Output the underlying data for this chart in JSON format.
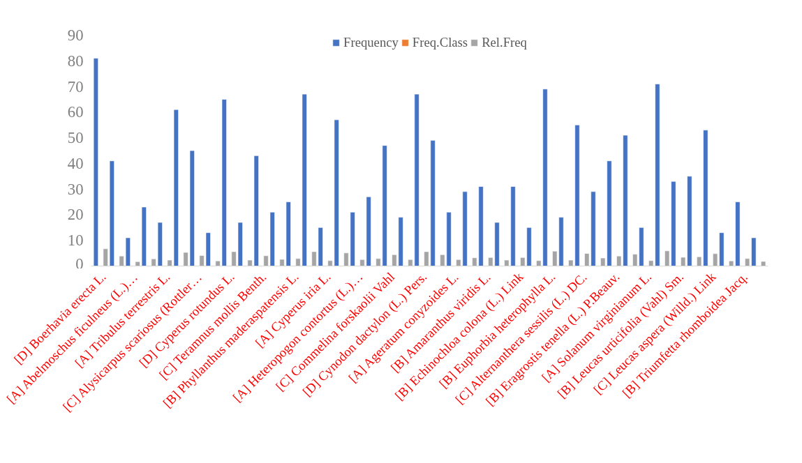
{
  "chart_data": {
    "type": "bar",
    "categories": [
      "[D] Boerhavia erecta L.",
      null,
      "[A] Abelmoschus ficulneus (L.)…",
      null,
      "[A] Tribulus terrestris L.",
      null,
      "[C] Alysicarpus scariosus (Rottler…",
      null,
      "[D] Cyperus rotundus L.",
      null,
      "[C] Teramnus mollis Benth.",
      null,
      "[B] Phyllanthus maderaspatensis L.",
      null,
      "[A] Cyperus iria L.",
      null,
      "[A] Heteropogon contortus (L.)…",
      null,
      "[C] Commelina forskaolii Vahl",
      null,
      "[D] Cynodon dactylon (L.) Pers.",
      null,
      "[A] Ageratum conyzoides L.",
      null,
      "[B] Amaranthus viridis L.",
      null,
      "[B] Echinochloa colona (L.) Link",
      null,
      "[B] Euphorbia heterophylla L.",
      null,
      "[C] Alternanthera sessilis (L.) DC.",
      null,
      "[B] Eragrostis tenella (L.) P.Beauv.",
      null,
      "[A] Solanum virginianum L.",
      null,
      "[B] Leucas urticifolia (Vahl) Sm.",
      null,
      "[C] Leucas aspera (Willd.) Link",
      null,
      "[B] Triumfetta rhomboidea Jacq.",
      null
    ],
    "series": [
      {
        "name": "Frequency",
        "color": "#4472c4",
        "values": [
          81,
          41,
          11,
          23,
          17,
          61,
          45,
          13,
          65,
          17,
          43,
          21,
          25,
          67,
          15,
          57,
          21,
          27,
          47,
          19,
          67,
          49,
          21,
          29,
          31,
          17,
          31,
          15,
          69,
          19,
          55,
          29,
          41,
          51,
          15,
          71,
          33,
          35,
          53,
          13,
          25,
          11
        ]
      },
      {
        "name": "Freq.Class",
        "color": "#ed7d31",
        "values": [
          null,
          null,
          null,
          null,
          null,
          null,
          null,
          null,
          null,
          null,
          null,
          null,
          null,
          null,
          null,
          null,
          null,
          null,
          null,
          null,
          null,
          null,
          null,
          null,
          null,
          null,
          null,
          null,
          null,
          null,
          null,
          null,
          null,
          null,
          null,
          null,
          null,
          null,
          null,
          null,
          null,
          null
        ]
      },
      {
        "name": "Rel.Freq",
        "color": "#a5a5a5",
        "values": [
          6.7,
          3.9,
          1.7,
          2.8,
          2.3,
          5.3,
          4.1,
          2.0,
          5.6,
          2.3,
          4.0,
          2.6,
          2.9,
          5.6,
          2.1,
          5.1,
          2.5,
          2.9,
          4.4,
          2.5,
          5.6,
          4.4,
          2.5,
          3.2,
          3.3,
          2.3,
          3.3,
          2.1,
          5.8,
          2.3,
          4.9,
          3.1,
          3.9,
          4.6,
          2.1,
          5.9,
          3.4,
          3.6,
          4.8,
          2.0,
          2.9,
          1.8
        ]
      }
    ],
    "ylim": [
      0,
      90
    ],
    "yticks": [
      0,
      10,
      20,
      30,
      40,
      50,
      60,
      70,
      80,
      90
    ],
    "grid": false,
    "legend": "top"
  }
}
